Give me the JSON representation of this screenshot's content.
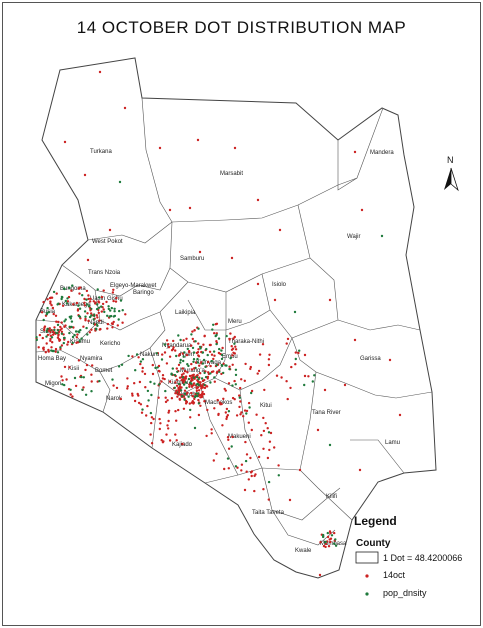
{
  "title": "14 OCTOBER DOT DISTRIBUTION MAP",
  "north_label": "N",
  "legend": {
    "title": "Legend",
    "subtitle": "County",
    "dot_value_label": "1 Dot = 48.4200066",
    "series": [
      {
        "name": "14oct",
        "color": "#cc2222"
      },
      {
        "name": "pop_dnsity",
        "color": "#1f7a3c"
      }
    ]
  },
  "counties": [
    "Turkana",
    "Marsabit",
    "Mandera",
    "Wajir",
    "West Pokot",
    "Samburu",
    "Isiolo",
    "Trans Nzoia",
    "Elgeyo-Marakwet",
    "Baringo",
    "Bungoma",
    "Kakamega",
    "Busia",
    "Siaya",
    "Kisumu",
    "Nandi",
    "Uasin Gishu",
    "Laikipia",
    "Meru",
    "Tharaka-Nithi",
    "Embu",
    "Nyandarua",
    "Nakuru",
    "Nyeri",
    "Kirinyaga",
    "Murang'a",
    "Kiambu",
    "Homa Bay",
    "Migori",
    "Kisii",
    "Nyamira",
    "Kericho",
    "Bomet",
    "Narok",
    "Nairobi",
    "Machakos",
    "Kitui",
    "Makueni",
    "Kajiado",
    "Garissa",
    "Tana River",
    "Lamu",
    "Kilifi",
    "Taita Taveta",
    "Kwale",
    "Mombasa"
  ],
  "colors": {
    "red_dots": "#cc2222",
    "green_dots": "#1f7a3c",
    "boundary": "#444444"
  }
}
